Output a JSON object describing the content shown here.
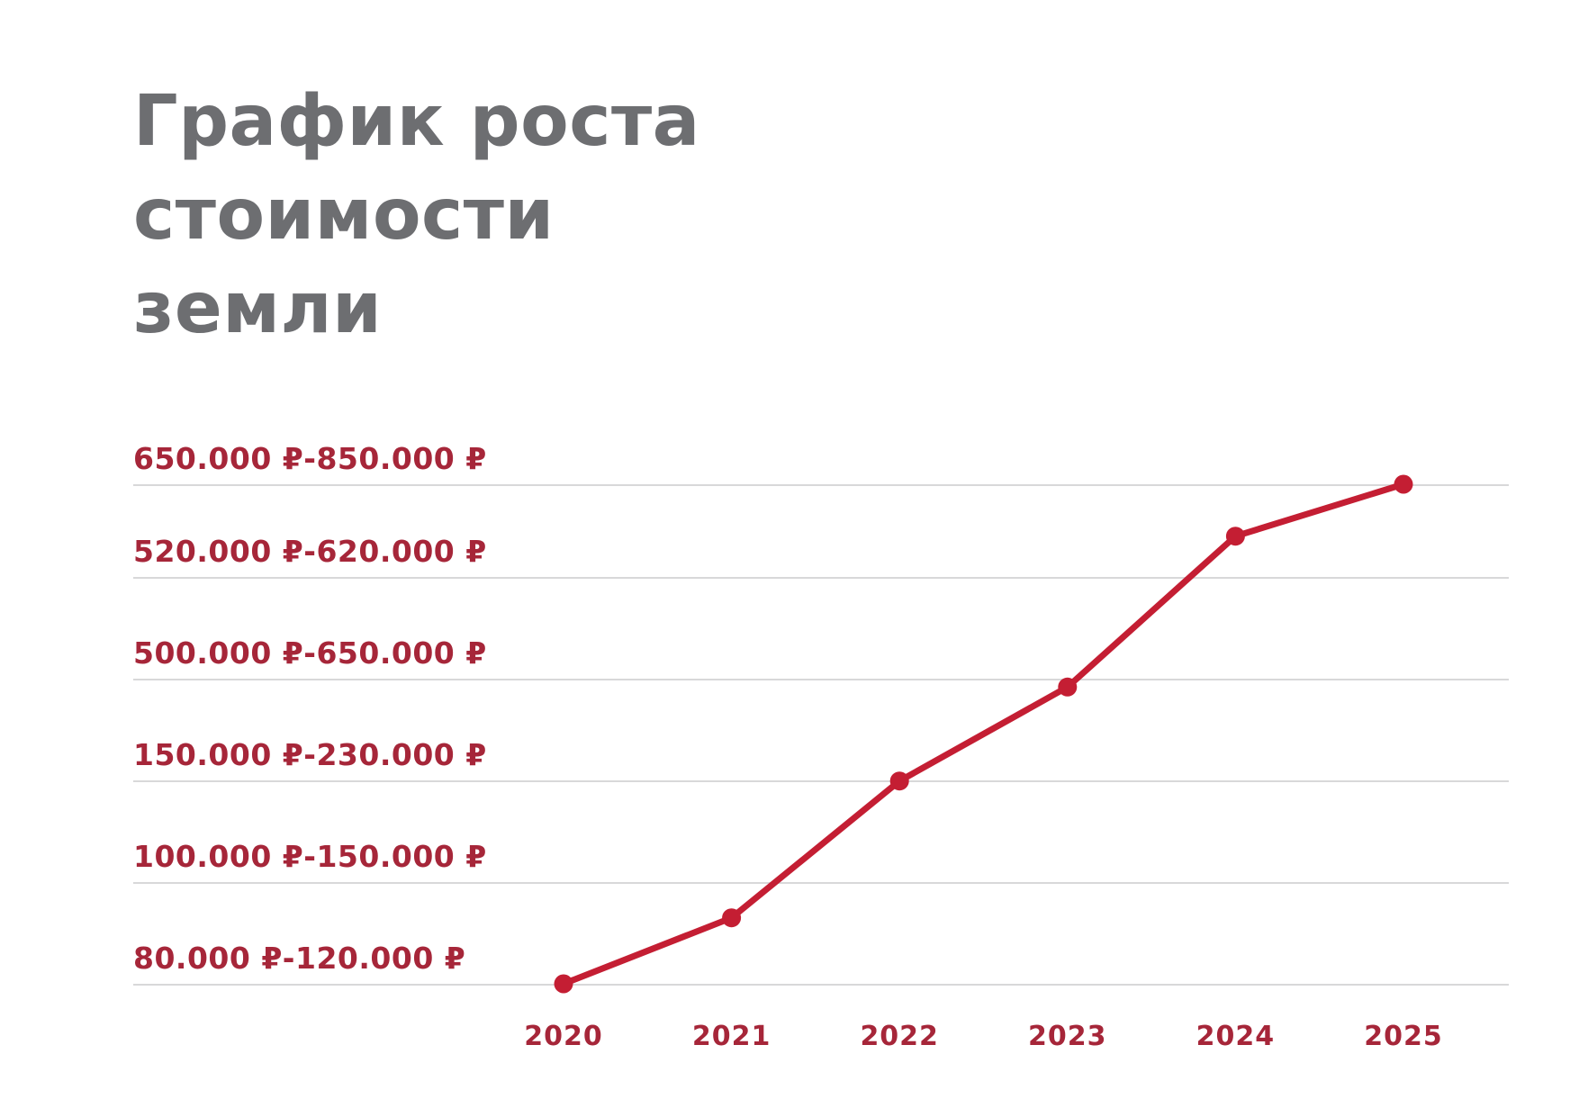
{
  "title": {
    "full": "График роста стоимости земли",
    "lines": [
      "График роста",
      "стоимости",
      "земли"
    ]
  },
  "chart_data": {
    "type": "line",
    "title": "График роста стоимости земли",
    "xlabel": "",
    "ylabel": "",
    "grid": true,
    "legend": false,
    "x_categories": [
      "2020",
      "2021",
      "2022",
      "2023",
      "2024",
      "2025"
    ],
    "y_tick_labels_top_to_bottom": [
      "650.000 ₽-850.000 ₽",
      "520.000 ₽-620.000 ₽",
      "500.000 ₽-650.000 ₽",
      "150.000 ₽-230.000 ₽",
      "100.000 ₽-150.000 ₽",
      "80.000 ₽-120.000 ₽"
    ],
    "points": [
      {
        "year": "2020",
        "price_range": "80.000 ₽-120.000 ₽",
        "level_0_to_5": 0
      },
      {
        "year": "2021",
        "price_range": "100.000 ₽-150.000 ₽",
        "level_0_to_5": 0.66
      },
      {
        "year": "2022",
        "price_range": "150.000 ₽-230.000 ₽",
        "level_0_to_5": 2.03
      },
      {
        "year": "2023",
        "price_range": "500.000 ₽-650.000 ₽",
        "level_0_to_5": 2.97
      },
      {
        "year": "2024",
        "price_range": "520.000 ₽-620.000 ₽",
        "level_0_to_5": 4.48
      },
      {
        "year": "2025",
        "price_range": "650.000 ₽-850.000 ₽",
        "level_0_to_5": 5
      }
    ]
  },
  "colors": {
    "background": "#ffffff",
    "title_gray": "#6d6e71",
    "axis_label_red": "#a62639",
    "line_red": "#c41e33",
    "gridline_gray": "#d8d8d9"
  }
}
